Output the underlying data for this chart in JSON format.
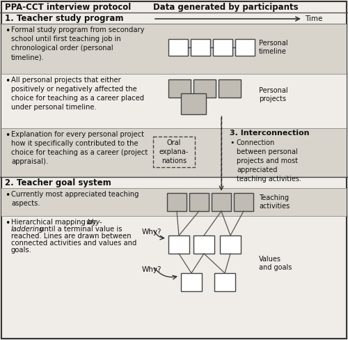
{
  "title_left": "PPA-CCT interview protocol",
  "title_right": "Data generated by participants",
  "overall_bg": "#f0ede8",
  "gray_band": "#d8d4cc",
  "box_white": "#ffffff",
  "box_gray": "#c0bcb4",
  "border_color": "#333333",
  "text_color": "#111111",
  "section1_title": "1. Teacher study program",
  "section2_title": "2. Teacher goal system",
  "section3_title": "3. Interconnection",
  "bullet1": "Formal study program from secondary\nschool until first teaching job in\nchronological order (personal\ntimeline).",
  "bullet2": "All personal projects that either\npositively or negatively affected the\nchoice for teaching as a career placed\nunder personal timeline.",
  "bullet3": "Explanation for every personal project\nhow it specifically contributed to the\nchoice for teaching as a career (project\nappraisal).",
  "bullet4": "Currently most appreciated teaching\naspects.",
  "bullet5_line1": "Hierarchical mapping by ",
  "bullet5_italic1": "why-",
  "bullet5_line2": "laddering",
  "bullet5_rest": " until a terminal value is\nreached. Lines are drawn between\nconnected activities and values and\ngoals.",
  "interconnection_text": "Connection\nbetween personal\nprojects and most\nappreciated\nteaching activities.",
  "label_time": "Time",
  "label_personal_timeline": "Personal\ntimeline",
  "label_personal_projects": "Personal\nprojects",
  "label_oral_explanations": "Oral\nexplana-\nnations",
  "label_teaching_activities": "Teaching\nactivities",
  "label_values_goals": "Values\nand goals",
  "label_why1": "Why?",
  "label_why2": "Why?"
}
